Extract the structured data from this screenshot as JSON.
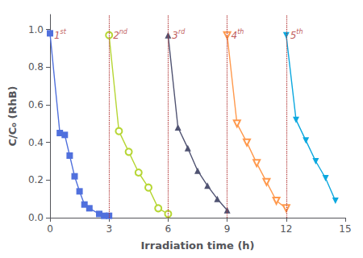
{
  "chart_data": {
    "type": "line",
    "xlabel": "Irradiation time (h)",
    "ylabel": "C/C₀ (RhB)",
    "series": [
      {
        "marker": "square",
        "x": [
          0,
          0.5,
          0.75,
          1.0,
          1.25,
          1.5,
          1.75,
          2.0,
          2.5,
          2.75,
          3.0
        ],
        "values": [
          0.98,
          0.45,
          0.44,
          0.33,
          0.22,
          0.14,
          0.07,
          0.05,
          0.02,
          0.01,
          0.01
        ]
      },
      {
        "marker": "circle-open",
        "x": [
          3.0,
          3.5,
          4.0,
          4.5,
          5.0,
          5.5,
          6.0
        ],
        "values": [
          0.97,
          0.46,
          0.35,
          0.24,
          0.16,
          0.05,
          0.02
        ]
      },
      {
        "marker": "triangle-up",
        "x": [
          6.0,
          6.5,
          7.0,
          7.5,
          8.0,
          8.5,
          9.0
        ],
        "values": [
          0.97,
          0.48,
          0.37,
          0.25,
          0.17,
          0.1,
          0.04
        ]
      },
      {
        "marker": "triangle-down-open",
        "x": [
          9.0,
          9.5,
          10.0,
          10.5,
          11.0,
          11.5,
          12.0
        ],
        "values": [
          0.97,
          0.5,
          0.4,
          0.29,
          0.19,
          0.09,
          0.05
        ]
      },
      {
        "marker": "triangle-down",
        "x": [
          12.0,
          12.5,
          13.0,
          13.5,
          14.0,
          14.5
        ],
        "values": [
          0.97,
          0.52,
          0.41,
          0.3,
          0.21,
          0.09
        ]
      }
    ],
    "vlines": [
      3,
      6,
      9,
      12
    ],
    "annotations": [
      {
        "text": "1",
        "sup": "st",
        "x": 0.12,
        "y": 0.975
      },
      {
        "text": "2",
        "sup": "nd",
        "x": 3.12,
        "y": 0.975
      },
      {
        "text": "3",
        "sup": "rd",
        "x": 6.12,
        "y": 0.975
      },
      {
        "text": "4",
        "sup": "th",
        "x": 9.12,
        "y": 0.975
      },
      {
        "text": "5",
        "sup": "th",
        "x": 12.12,
        "y": 0.975
      }
    ],
    "xlim": [
      0,
      15
    ],
    "ylim": [
      0,
      1.08
    ],
    "xticks": [
      0,
      3,
      6,
      9,
      12,
      15
    ],
    "yticks": [
      {
        "value": 0,
        "label": "0.0"
      },
      0.2,
      0.4,
      0.6,
      0.8,
      {
        "value": 1,
        "label": "1.0"
      }
    ],
    "grid": false
  }
}
